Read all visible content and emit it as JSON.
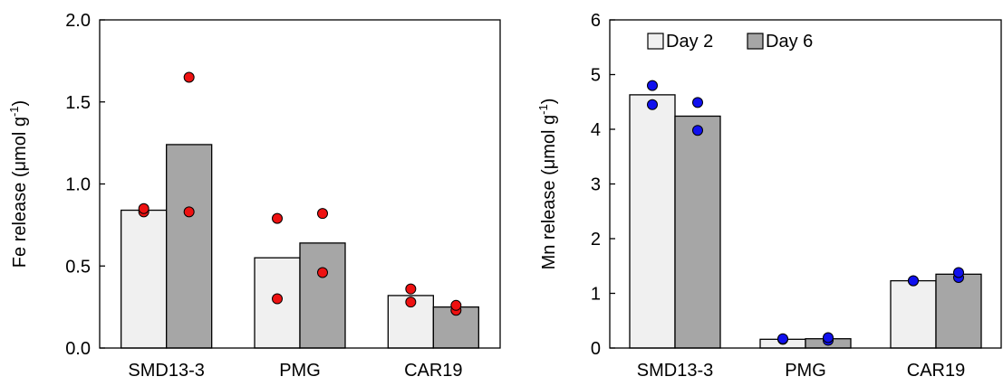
{
  "chart_data": [
    {
      "type": "bar",
      "categories": [
        "SMD13-3",
        "PMG",
        "CAR19"
      ],
      "series": [
        {
          "name": "Day 2",
          "values": [
            0.84,
            0.55,
            0.32
          ],
          "points": [
            [
              0.83,
              0.85
            ],
            [
              0.3,
              0.79
            ],
            [
              0.28,
              0.36
            ]
          ],
          "color": "#f0f0f0"
        },
        {
          "name": "Day 6",
          "values": [
            1.24,
            0.64,
            0.25
          ],
          "points": [
            [
              0.83,
              1.65
            ],
            [
              0.46,
              0.82
            ],
            [
              0.23,
              0.26
            ]
          ],
          "color": "#a6a6a6"
        }
      ],
      "point_color": "#ee1111",
      "ylabel": "Fe release (μmol g",
      "ylabel_sup": "-1",
      "ylabel_end": ")",
      "ylim": [
        0,
        2
      ],
      "yticks": [
        "0.0",
        "0.5",
        "1.0",
        "1.5",
        "2.0"
      ],
      "ytick_values": [
        0,
        0.5,
        1.0,
        1.5,
        2.0
      ],
      "legend": false
    },
    {
      "type": "bar",
      "categories": [
        "SMD13-3",
        "PMG",
        "CAR19"
      ],
      "series": [
        {
          "name": "Day 2",
          "values": [
            4.63,
            0.16,
            1.23
          ],
          "points": [
            [
              4.45,
              4.8
            ],
            [
              0.16,
              0.17
            ],
            [
              1.23,
              1.23
            ]
          ],
          "color": "#f0f0f0"
        },
        {
          "name": "Day 6",
          "values": [
            4.24,
            0.17,
            1.35
          ],
          "points": [
            [
              3.98,
              4.49
            ],
            [
              0.14,
              0.19
            ],
            [
              1.29,
              1.38
            ]
          ],
          "color": "#a6a6a6"
        }
      ],
      "point_color": "#1010ee",
      "ylabel": "Mn release (μmol g",
      "ylabel_sup": "-1",
      "ylabel_end": ")",
      "ylim": [
        0,
        6
      ],
      "yticks": [
        "0",
        "1",
        "2",
        "3",
        "4",
        "5",
        "6"
      ],
      "ytick_values": [
        0,
        1,
        2,
        3,
        4,
        5,
        6
      ],
      "legend": true,
      "legend_position": "top-left"
    }
  ]
}
